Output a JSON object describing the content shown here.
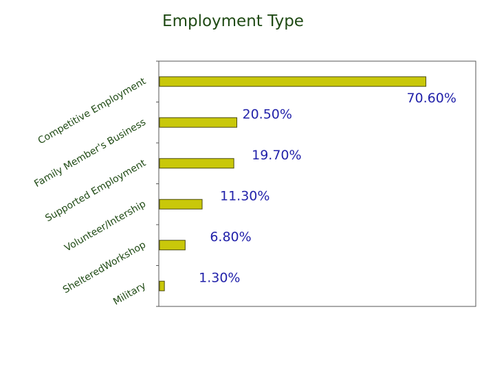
{
  "chart_data": {
    "type": "bar",
    "orientation": "horizontal",
    "title": "Employment Type",
    "categories": [
      "Competitive Employment",
      "Family Member's Business",
      "Supported Employment",
      "Volunteer/Intership",
      "ShelteredWorkshop",
      "Military"
    ],
    "values": [
      70.6,
      20.5,
      19.7,
      11.3,
      6.8,
      1.3
    ],
    "value_labels": [
      "70.60%",
      "20.50%",
      "19.70%",
      "11.30%",
      "6.80%",
      "1.30%"
    ],
    "xlim": [
      0,
      84
    ],
    "grid": false,
    "legend": "none",
    "colors": {
      "bar": "#c9c80a",
      "bar_stroke": "#4a4a10",
      "label": "#2222aa",
      "title": "#1f4a14",
      "axis": "#555555"
    }
  }
}
